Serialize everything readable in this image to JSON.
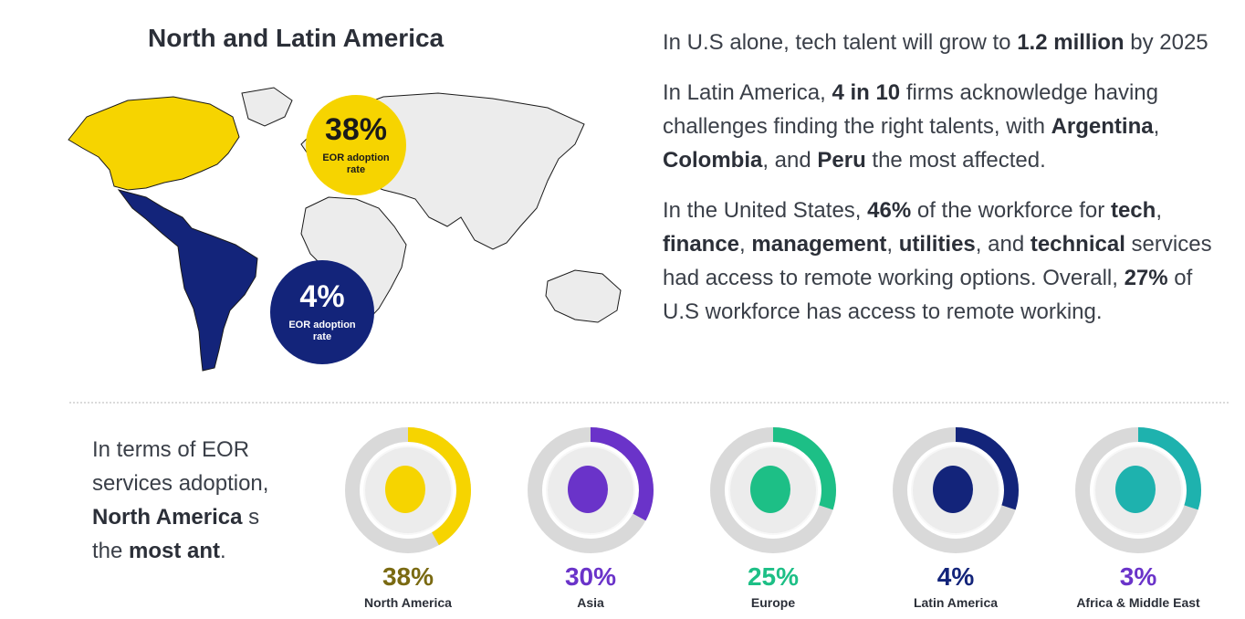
{
  "header": {
    "title": "North and Latin America"
  },
  "map": {
    "north_america": {
      "percent": "38%",
      "label": "EOR adoption rate",
      "color": "#f6d400"
    },
    "latin_america": {
      "percent": "4%",
      "label": "EOR adoption rate",
      "color": "#13247a"
    }
  },
  "facts": [
    [
      {
        "t": "In U.S alone, tech talent will grow to ",
        "b": false
      },
      {
        "t": "1.2 million",
        "b": true
      },
      {
        "t": " by 2025",
        "b": false
      }
    ],
    [
      {
        "t": "In Latin America, ",
        "b": false
      },
      {
        "t": "4 in 10",
        "b": true
      },
      {
        "t": " firms acknowledge having challenges finding the right talents, with ",
        "b": false
      },
      {
        "t": "Argentina",
        "b": true
      },
      {
        "t": ", ",
        "b": false
      },
      {
        "t": "Colombia",
        "b": true
      },
      {
        "t": ", and ",
        "b": false
      },
      {
        "t": "Peru",
        "b": true
      },
      {
        "t": " the most affected.",
        "b": false
      }
    ],
    [
      {
        "t": "In the United States, ",
        "b": false
      },
      {
        "t": "46%",
        "b": true
      },
      {
        "t": " of the workforce for ",
        "b": false
      },
      {
        "t": "tech",
        "b": true
      },
      {
        "t": ", ",
        "b": false
      },
      {
        "t": "finance",
        "b": true
      },
      {
        "t": ", ",
        "b": false
      },
      {
        "t": "management",
        "b": true
      },
      {
        "t": ", ",
        "b": false
      },
      {
        "t": "utilities",
        "b": true
      },
      {
        "t": ", and ",
        "b": false
      },
      {
        "t": "technical",
        "b": true
      },
      {
        "t": " services had access to remote working options. Overall, ",
        "b": false
      },
      {
        "t": "27%",
        "b": true
      },
      {
        "t": " of U.S workforce has access to remote working.",
        "b": false
      }
    ]
  ],
  "summary": [
    {
      "t": "In terms of EOR services adoption, ",
      "b": false
    },
    {
      "t": "North America",
      "b": true
    },
    {
      "t": " ",
      "b": false
    },
    {
      "t": "s the ",
      "b": false
    },
    {
      "t": "most",
      "b": true
    },
    {
      "t": " ",
      "b": false
    },
    {
      "t": "ant",
      "b": true
    },
    {
      "t": ".",
      "b": false
    }
  ],
  "regions": [
    {
      "name": "North America",
      "percent": "38%",
      "fraction": 0.38,
      "color": "#f6d400",
      "text_color": "#7a6a12",
      "icon": "north-america-globe-icon"
    },
    {
      "name": "Asia",
      "percent": "30%",
      "fraction": 0.3,
      "color": "#6a33c9",
      "text_color": "#6a33c9",
      "icon": "asia-globe-icon"
    },
    {
      "name": "Europe",
      "percent": "25%",
      "fraction": 0.25,
      "color": "#1dbf86",
      "text_color": "#1dbf86",
      "icon": "europe-globe-icon"
    },
    {
      "name": "Latin America",
      "percent": "4%",
      "fraction": 0.04,
      "color": "#13247a",
      "text_color": "#13247a",
      "icon": "latin-america-globe-icon"
    },
    {
      "name": "Africa & Middle East",
      "percent": "3%",
      "fraction": 0.03,
      "color": "#1eb2ae",
      "text_color": "#6a33c9",
      "icon": "africa-middle-east-globe-icon"
    }
  ]
}
